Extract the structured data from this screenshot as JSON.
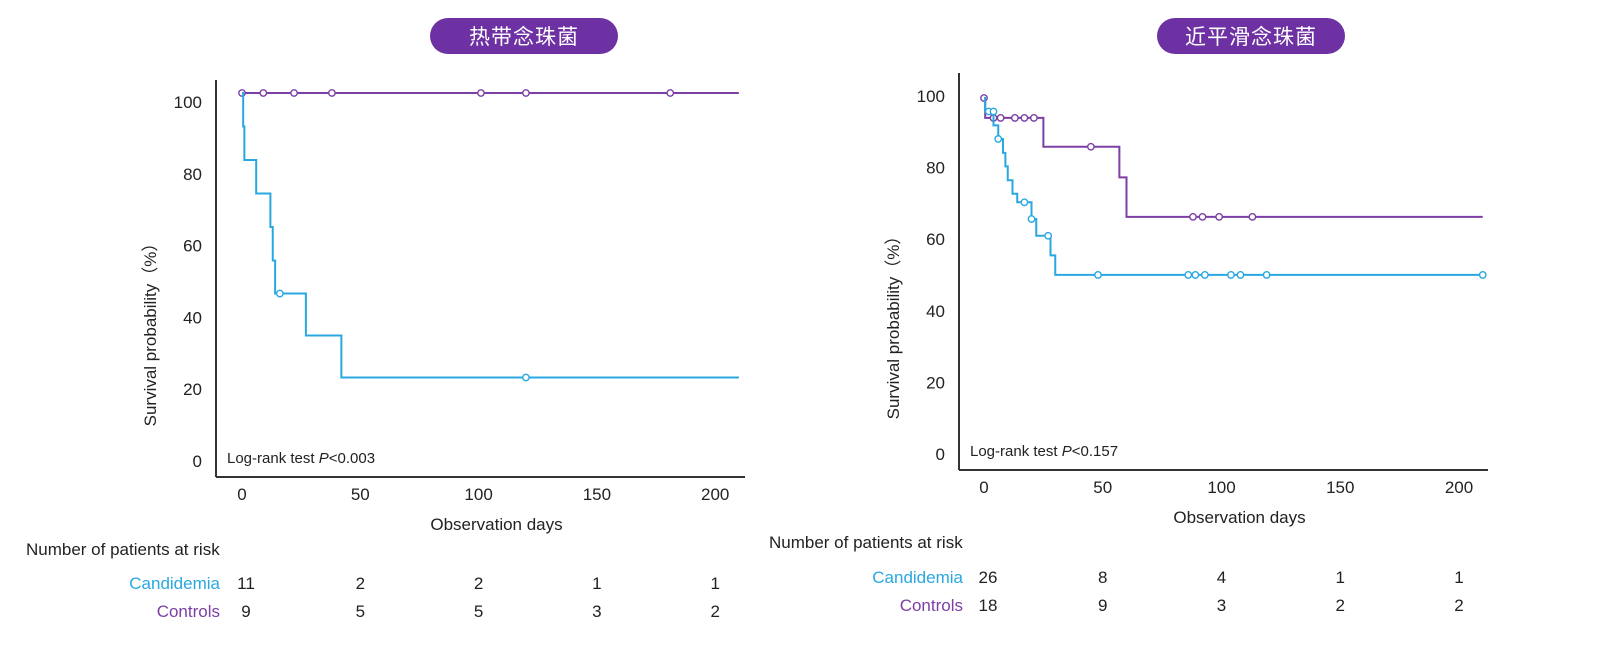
{
  "colors": {
    "candidemia": "#29a8e0",
    "controls": "#7b3fa6",
    "pill": "#6e31a3",
    "axis": "#333333"
  },
  "chart_data": [
    {
      "type": "line",
      "subtype": "kaplan-meier",
      "title": "热带念珠菌",
      "xlabel": "Observation days",
      "ylabel": "Survival probability（%）",
      "xlim": [
        0,
        210
      ],
      "ylim": [
        0,
        100
      ],
      "x_ticks": [
        0,
        50,
        100,
        150,
        200
      ],
      "y_ticks": [
        0,
        20,
        40,
        60,
        80,
        100
      ],
      "annotation": {
        "text": "Log-rank test ",
        "p_label": "P",
        "p_value": "<0.003"
      },
      "series": [
        {
          "name": "Controls",
          "steps": [
            [
              0,
              100
            ],
            [
              210,
              100
            ]
          ],
          "censored": [
            [
              0,
              100
            ],
            [
              9,
              100
            ],
            [
              22,
              100
            ],
            [
              38,
              100
            ],
            [
              101,
              100
            ],
            [
              120,
              100
            ],
            [
              181,
              100
            ]
          ]
        },
        {
          "name": "Candidemia",
          "steps": [
            [
              0,
              100
            ],
            [
              0.5,
              90.9
            ],
            [
              1,
              81.8
            ],
            [
              6,
              72.7
            ],
            [
              12,
              63.6
            ],
            [
              13,
              54.5
            ],
            [
              14,
              45.5
            ],
            [
              27,
              34.1
            ],
            [
              42,
              22.7
            ],
            [
              210,
              22.7
            ]
          ],
          "censored": [
            [
              16,
              45.5
            ],
            [
              120,
              22.7
            ]
          ]
        }
      ],
      "risk_table": {
        "title": "Number of patients at risk",
        "rows": [
          {
            "name": "Candidemia",
            "values": [
              11,
              2,
              2,
              1,
              1
            ]
          },
          {
            "name": "Controls",
            "values": [
              9,
              5,
              5,
              3,
              2
            ]
          }
        ]
      }
    },
    {
      "type": "line",
      "subtype": "kaplan-meier",
      "title": "近平滑念珠菌",
      "xlabel": "Observation days",
      "ylabel": "Survival probability（%）",
      "xlim": [
        0,
        210
      ],
      "ylim": [
        0,
        100
      ],
      "x_ticks": [
        0,
        50,
        100,
        150,
        200
      ],
      "y_ticks": [
        0,
        20,
        40,
        60,
        80,
        100
      ],
      "annotation": {
        "text": "Log-rank test ",
        "p_label": "P",
        "p_value": "<0.157"
      },
      "series": [
        {
          "name": "Controls",
          "steps": [
            [
              0,
              100
            ],
            [
              0.5,
              94.4
            ],
            [
              25,
              86.3
            ],
            [
              57,
              77.7
            ],
            [
              60,
              66.6
            ],
            [
              210,
              66.6
            ]
          ],
          "censored": [
            [
              0,
              100
            ],
            [
              4,
              94.4
            ],
            [
              7,
              94.4
            ],
            [
              13,
              94.4
            ],
            [
              17,
              94.4
            ],
            [
              21,
              94.4
            ],
            [
              45,
              86.3
            ],
            [
              88,
              66.6
            ],
            [
              92,
              66.6
            ],
            [
              99,
              66.6
            ],
            [
              113,
              66.6
            ]
          ]
        },
        {
          "name": "Candidemia",
          "steps": [
            [
              0,
              100
            ],
            [
              0.5,
              96.2
            ],
            [
              4,
              92.3
            ],
            [
              6,
              88.5
            ],
            [
              8,
              84.6
            ],
            [
              9,
              80.8
            ],
            [
              10,
              76.9
            ],
            [
              12,
              73.1
            ],
            [
              14,
              70.7
            ],
            [
              20,
              66.0
            ],
            [
              22,
              61.3
            ],
            [
              28,
              55.8
            ],
            [
              30,
              50.3
            ],
            [
              210,
              50.3
            ]
          ],
          "censored": [
            [
              2,
              96.2
            ],
            [
              4,
              96.2
            ],
            [
              6,
              88.5
            ],
            [
              17,
              70.7
            ],
            [
              20,
              66.0
            ],
            [
              27,
              61.3
            ],
            [
              48,
              50.3
            ],
            [
              86,
              50.3
            ],
            [
              89,
              50.3
            ],
            [
              93,
              50.3
            ],
            [
              104,
              50.3
            ],
            [
              108,
              50.3
            ],
            [
              119,
              50.3
            ],
            [
              210,
              50.3
            ]
          ]
        }
      ],
      "risk_table": {
        "title": "Number of patients at risk",
        "rows": [
          {
            "name": "Candidemia",
            "values": [
              26,
              8,
              4,
              1,
              1
            ]
          },
          {
            "name": "Controls",
            "values": [
              18,
              9,
              3,
              2,
              2
            ]
          }
        ]
      }
    }
  ]
}
